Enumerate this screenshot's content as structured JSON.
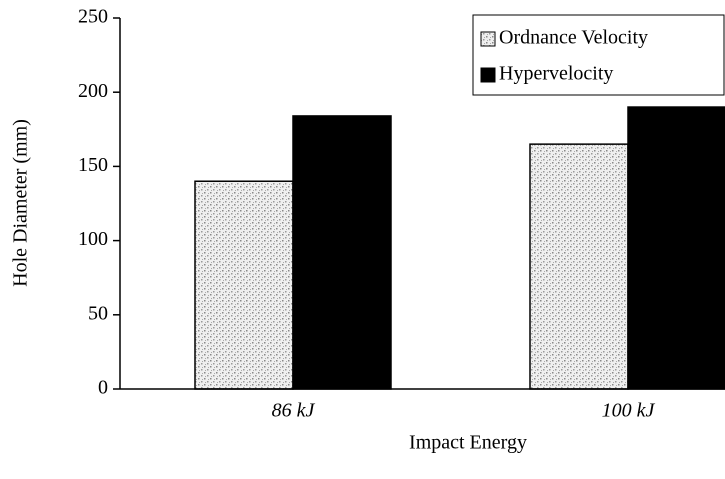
{
  "chart_data": {
    "type": "bar",
    "xlabel": "Impact Energy",
    "ylabel": "Hole Diameter (mm)",
    "categories": [
      "86 kJ",
      "100 kJ"
    ],
    "series": [
      {
        "name": "Ordnance Velocity",
        "color": "#d8d8d8",
        "values": [
          140,
          165
        ]
      },
      {
        "name": "Hypervelocity",
        "color": "#000000",
        "values": [
          184,
          190
        ]
      }
    ],
    "ylim": [
      0,
      250
    ],
    "yticks": [
      0,
      50,
      100,
      150,
      200,
      250
    ],
    "legend": "upper right"
  }
}
